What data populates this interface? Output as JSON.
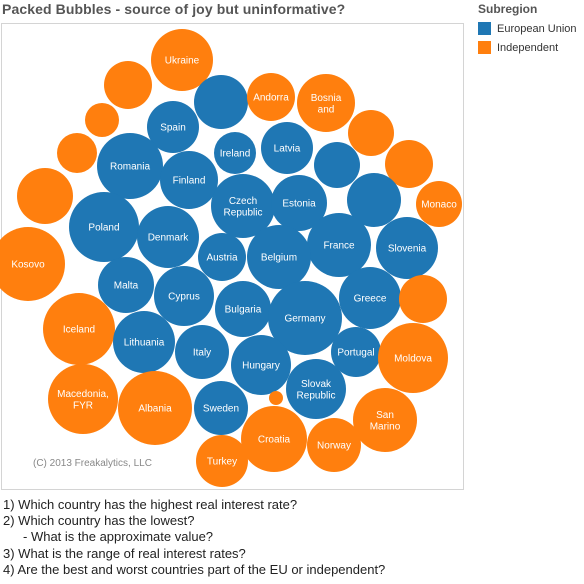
{
  "title": "Packed Bubbles - source of joy but uninformative?",
  "legend": {
    "title": "Subregion",
    "items": [
      {
        "label": "European Union",
        "color": "#1f77b4"
      },
      {
        "label": "Independent",
        "color": "#ff7f0e"
      }
    ]
  },
  "watermark": "(C) 2013 Freakalytics, LLC",
  "questions": [
    {
      "text": "1) Which country has the highest real interest rate?",
      "indent": false
    },
    {
      "text": "2) Which country has the lowest?",
      "indent": false
    },
    {
      "text": "- What is the approximate value?",
      "indent": true
    },
    {
      "text": "3) What is the range of real interest rates?",
      "indent": false
    },
    {
      "text": "4) Are the best and worst countries part of the EU or independent?",
      "indent": false
    }
  ],
  "chart_data": {
    "type": "packed-bubbles",
    "size_measure": "real interest rate (values not printed)",
    "bubbles": [
      {
        "label": "Ukraine",
        "group": "Independent"
      },
      {
        "label": "",
        "group": "Independent"
      },
      {
        "label": "",
        "group": "Independent"
      },
      {
        "label": "",
        "group": "European Union"
      },
      {
        "label": "Andorra",
        "group": "Independent"
      },
      {
        "label": "Bosnia\nand",
        "group": "Independent"
      },
      {
        "label": "Spain",
        "group": "European Union"
      },
      {
        "label": "",
        "group": "Independent"
      },
      {
        "label": "",
        "group": "Independent"
      },
      {
        "label": "Ireland",
        "group": "European Union"
      },
      {
        "label": "Latvia",
        "group": "European Union"
      },
      {
        "label": "",
        "group": "European Union"
      },
      {
        "label": "",
        "group": "Independent"
      },
      {
        "label": "Romania",
        "group": "European Union"
      },
      {
        "label": "Finland",
        "group": "European Union"
      },
      {
        "label": "",
        "group": "Independent"
      },
      {
        "label": "Czech\nRepublic",
        "group": "European Union"
      },
      {
        "label": "Estonia",
        "group": "European Union"
      },
      {
        "label": "",
        "group": "European Union"
      },
      {
        "label": "Monaco",
        "group": "Independent"
      },
      {
        "label": "Poland",
        "group": "European Union"
      },
      {
        "label": "Denmark",
        "group": "European Union"
      },
      {
        "label": "France",
        "group": "European Union"
      },
      {
        "label": "Slovenia",
        "group": "European Union"
      },
      {
        "label": "Austria",
        "group": "European Union"
      },
      {
        "label": "Belgium",
        "group": "European Union"
      },
      {
        "label": "Kosovo",
        "group": "Independent"
      },
      {
        "label": "Malta",
        "group": "European Union"
      },
      {
        "label": "Cyprus",
        "group": "European Union"
      },
      {
        "label": "Greece",
        "group": "European Union"
      },
      {
        "label": "",
        "group": "Independent"
      },
      {
        "label": "Bulgaria",
        "group": "European Union"
      },
      {
        "label": "Germany",
        "group": "European Union"
      },
      {
        "label": "Iceland",
        "group": "Independent"
      },
      {
        "label": "Lithuania",
        "group": "European Union"
      },
      {
        "label": "Portugal",
        "group": "European Union"
      },
      {
        "label": "Italy",
        "group": "European Union"
      },
      {
        "label": "Moldova",
        "group": "Independent"
      },
      {
        "label": "Hungary",
        "group": "European Union"
      },
      {
        "label": "Macedonia,\nFYR",
        "group": "Independent"
      },
      {
        "label": "Albania",
        "group": "Independent"
      },
      {
        "label": "Slovak\nRepublic",
        "group": "European Union"
      },
      {
        "label": "Sweden",
        "group": "European Union"
      },
      {
        "label": "",
        "group": "Independent"
      },
      {
        "label": "San\nMarino",
        "group": "Independent"
      },
      {
        "label": "Croatia",
        "group": "Independent"
      },
      {
        "label": "Norway",
        "group": "Independent"
      },
      {
        "label": "Turkey",
        "group": "Independent"
      }
    ]
  }
}
